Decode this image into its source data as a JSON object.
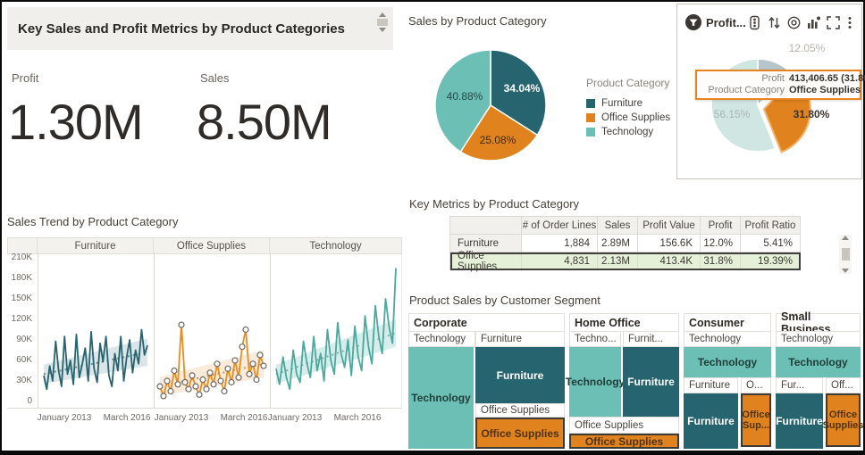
{
  "colors": {
    "dark_teal": "#26646F",
    "light_teal": "#6CBFB5",
    "orange": "#E0831F",
    "row_highlight": "#E5F0D9",
    "tooltip_border": "#E8831D"
  },
  "kpi_panel": {
    "title": "Key Sales and Profit Metrics by Product Categories",
    "metrics": [
      {
        "label": "Profit",
        "value": "1.30M"
      },
      {
        "label": "Sales",
        "value": "8.50M"
      }
    ]
  },
  "sales_pie": {
    "title": "Sales by Product Category",
    "legend_title": "Product Category",
    "type": "pie",
    "slices": [
      {
        "label": "Furniture",
        "pct": 34.04,
        "pct_label": "34.04%",
        "color": "#26646F"
      },
      {
        "label": "Office Supplies",
        "pct": 25.08,
        "pct_label": "25.08%",
        "color": "#E0831F"
      },
      {
        "label": "Technology",
        "pct": 40.88,
        "pct_label": "40.88%",
        "color": "#6CBFB5"
      }
    ]
  },
  "profit_card": {
    "toolbar": {
      "filter_label": "Profit...",
      "icons": [
        "filter-icon",
        "traffic-light-icon",
        "sort-icon",
        "target-icon",
        "chart-type-icon",
        "maximize-icon",
        "menu-icon"
      ]
    },
    "type": "pie",
    "slices": [
      {
        "label": "Furniture",
        "pct": 12.05,
        "pct_label": "12.05%",
        "color": "#B7C6CA"
      },
      {
        "label": "Office Supplies",
        "pct": 31.8,
        "pct_label": "31.80%",
        "color": "#E0831F",
        "exploded": true,
        "halo": "#F2B56B"
      },
      {
        "label": "Technology",
        "pct": 56.15,
        "pct_label": "56.15%",
        "color": "#CFE6E2"
      }
    ],
    "tooltip": {
      "rows": [
        {
          "label": "Profit",
          "value": "413,406.65 (31.80%)"
        },
        {
          "label": "Product Category",
          "value": "Office Supplies"
        }
      ]
    }
  },
  "trend": {
    "title": "Sales Trend by Product Category",
    "type": "line",
    "y_axis": [
      {
        "label": "210K",
        "v": 210
      },
      {
        "label": "180K",
        "v": 180
      },
      {
        "label": "150K",
        "v": 150
      },
      {
        "label": "120K",
        "v": 120
      },
      {
        "label": "90K",
        "v": 90
      },
      {
        "label": "60K",
        "v": 60
      },
      {
        "label": "30K",
        "v": 30
      },
      {
        "label": "0",
        "v": 0
      }
    ],
    "x_ticks": [
      "January 2013",
      "March 2016"
    ],
    "panels": [
      {
        "name": "Furniture",
        "color": "#26646F",
        "trend_color": "#6c8b92",
        "band": "rgba(38,100,112,0.16)",
        "markers": false,
        "trend": [
          40,
          72
        ],
        "values": [
          38,
          18,
          52,
          30,
          88,
          45,
          22,
          95,
          40,
          60,
          25,
          98,
          35,
          55,
          78,
          30,
          102,
          48,
          28,
          85,
          58,
          95,
          38,
          22,
          70,
          45,
          95,
          30,
          65,
          90,
          42,
          75,
          55,
          105,
          68,
          82
        ]
      },
      {
        "name": "Office Supplies",
        "color": "#EC8A1A",
        "trend_color": "#cf9554",
        "band": "rgba(224,131,31,0.16)",
        "markers": true,
        "trend": [
          22,
          55
        ],
        "values": [
          22,
          8,
          30,
          15,
          45,
          25,
          112,
          28,
          18,
          38,
          22,
          10,
          32,
          18,
          42,
          25,
          55,
          30,
          15,
          48,
          28,
          60,
          35,
          80,
          105,
          40,
          55,
          32,
          68,
          52
        ]
      },
      {
        "name": "Technology",
        "color": "#49A99E",
        "trend_color": "#79b3ab",
        "band": "rgba(79,174,163,0.22)",
        "markers": false,
        "trend": [
          40,
          100
        ],
        "values": [
          48,
          25,
          65,
          35,
          18,
          75,
          40,
          28,
          88,
          55,
          35,
          95,
          45,
          70,
          30,
          105,
          60,
          40,
          115,
          70,
          50,
          90,
          38,
          110,
          65,
          45,
          125,
          80,
          55,
          140,
          95,
          70,
          150,
          110,
          85,
          195
        ]
      }
    ]
  },
  "metrics_table": {
    "title": "Key Metrics by Product Category",
    "columns": [
      "",
      "# of Order Lines",
      "Sales",
      "Profit Value",
      "Profit",
      "Profit Ratio"
    ],
    "rows": [
      {
        "cells": [
          "Furniture",
          "1,884",
          "2.89M",
          "156.6K",
          "12.0%",
          "5.41%"
        ],
        "highlight": false
      },
      {
        "cells": [
          "Office Supplies",
          "4,831",
          "2.13M",
          "413.4K",
          "31.8%",
          "19.39%"
        ],
        "highlight": true
      }
    ]
  },
  "treemap": {
    "title": "Product Sales by Customer Segment",
    "corporate": {
      "header": "Corporate",
      "l1": "Technology",
      "l2": "Furniture",
      "tech": "Technology",
      "furn": "Furniture",
      "os_label": "Office Supplies",
      "os_block": "Office Supplies"
    },
    "home_office": {
      "header": "Home Office",
      "l1": "Techno...",
      "l2": "Furnit...",
      "tech": "Technology",
      "furn": "Furniture",
      "os_label": "Office Supplies",
      "os_block": "Office Supplies"
    },
    "consumer": {
      "header": "Consumer",
      "l1": "Technology",
      "tech_bar": "Technology",
      "l2": "Furniture",
      "l3": "O...",
      "furn": "Furniture",
      "os_block": "Office Sup..."
    },
    "small_business": {
      "header": "Small Business",
      "l1": "Technology",
      "tech_bar": "Technology",
      "l2": "Fur...",
      "l3": "Off...",
      "furn": "Furniture",
      "os_block": "Office Supplies"
    }
  }
}
